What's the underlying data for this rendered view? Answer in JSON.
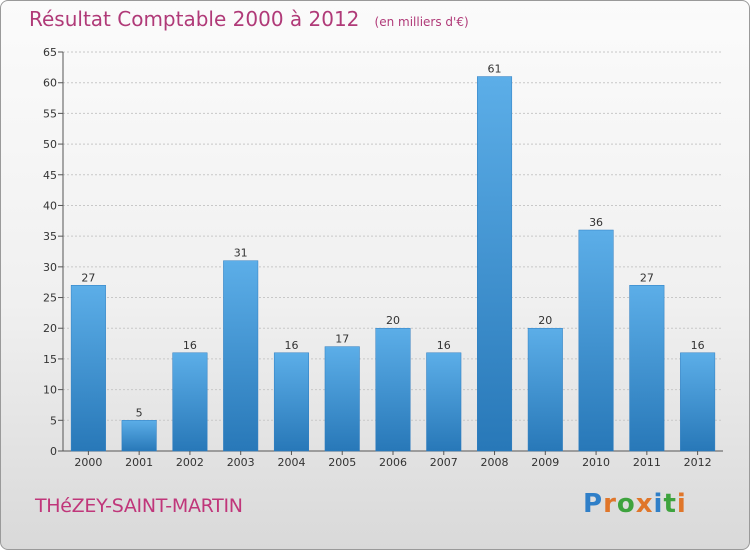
{
  "title": "Résultat Comptable 2000 à 2012",
  "subtitle": "(en milliers d'€)",
  "city": "THéZEY-SAINT-MARTIN",
  "logo": {
    "text": "Proxiti",
    "letters": [
      {
        "ch": "P",
        "color": "#2f7fc8"
      },
      {
        "ch": "r",
        "color": "#e0762a"
      },
      {
        "ch": "o",
        "color": "#3ea33e"
      },
      {
        "ch": "x",
        "color": "#e0762a"
      },
      {
        "ch": "i",
        "color": "#2f7fc8"
      },
      {
        "ch": "t",
        "color": "#3ea33e"
      },
      {
        "ch": "i",
        "color": "#e0762a"
      }
    ]
  },
  "colors": {
    "title": "#b03a78",
    "city": "#c0367a",
    "bar_top": "#5caee8",
    "bar_bottom": "#2878b8",
    "grid": "#c8c8c8",
    "axis_text": "#333333"
  },
  "chart_data": {
    "type": "bar",
    "title": "Résultat Comptable 2000 à 2012",
    "subtitle": "(en milliers d'€)",
    "categories": [
      "2000",
      "2001",
      "2002",
      "2003",
      "2004",
      "2005",
      "2006",
      "2007",
      "2008",
      "2009",
      "2010",
      "2011",
      "2012"
    ],
    "values": [
      27,
      5,
      16,
      31,
      16,
      17,
      20,
      16,
      61,
      20,
      36,
      27,
      16
    ],
    "ylim": [
      0,
      65
    ],
    "yticks": [
      0,
      5,
      10,
      15,
      20,
      25,
      30,
      35,
      40,
      45,
      50,
      55,
      60,
      65
    ],
    "grid": true,
    "data_labels": true
  }
}
